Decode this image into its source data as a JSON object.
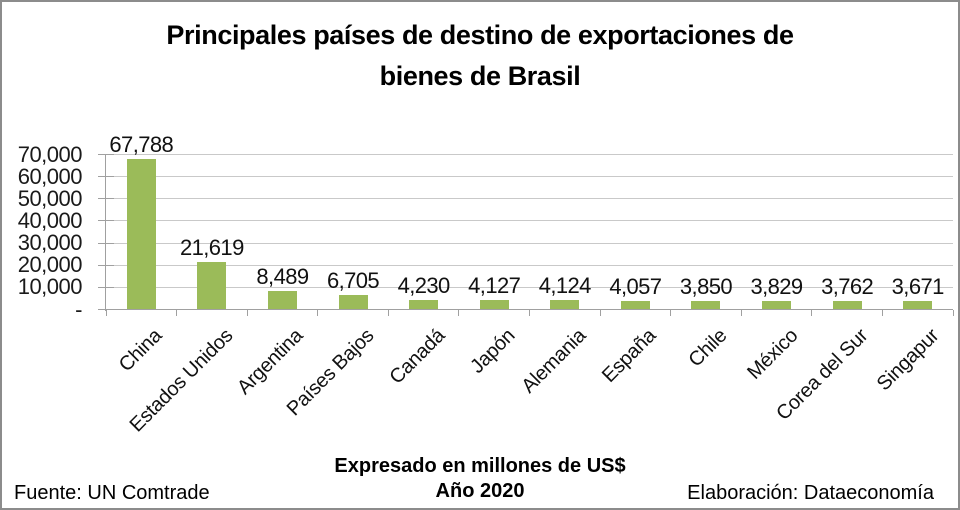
{
  "chart_data": {
    "type": "bar",
    "title": "Principales países de destino de exportaciones de bienes de Brasil",
    "title_lines": [
      "Principales países de destino de exportaciones de",
      "bienes de Brasil"
    ],
    "categories": [
      "China",
      "Estados Unidos",
      "Argentina",
      "Países Bajos",
      "Canadá",
      "Japón",
      "Alemania",
      "España",
      "Chile",
      "México",
      "Corea del Sur",
      "Singapur"
    ],
    "values": [
      67788,
      21619,
      8489,
      6705,
      4230,
      4127,
      4124,
      4057,
      3850,
      3829,
      3762,
      3671
    ],
    "value_labels": [
      "67,788",
      "21,619",
      "8,489",
      "6,705",
      "4,230",
      "4,127",
      "4,124",
      "4,057",
      "3,850",
      "3,829",
      "3,762",
      "3,671"
    ],
    "y_axis": {
      "min": 0,
      "max": 70000,
      "tick_values": [
        70000,
        60000,
        50000,
        40000,
        30000,
        20000,
        10000,
        0
      ],
      "tick_labels": [
        "70,000",
        "60,000",
        "50,000",
        "40,000",
        "30,000",
        "20,000",
        "10,000",
        "-"
      ]
    },
    "grid": "horizontal",
    "legend": "none",
    "bar_color": "#9BBB59",
    "gridline_color": "#C9C9C9",
    "axis_color": "#A0A0A0",
    "unit_note_lines": [
      "Expresado en millones de US$",
      "Año 2020"
    ],
    "footer_left": "Fuente: UN Comtrade",
    "footer_right": "Elaboración: Dataeconomía"
  }
}
